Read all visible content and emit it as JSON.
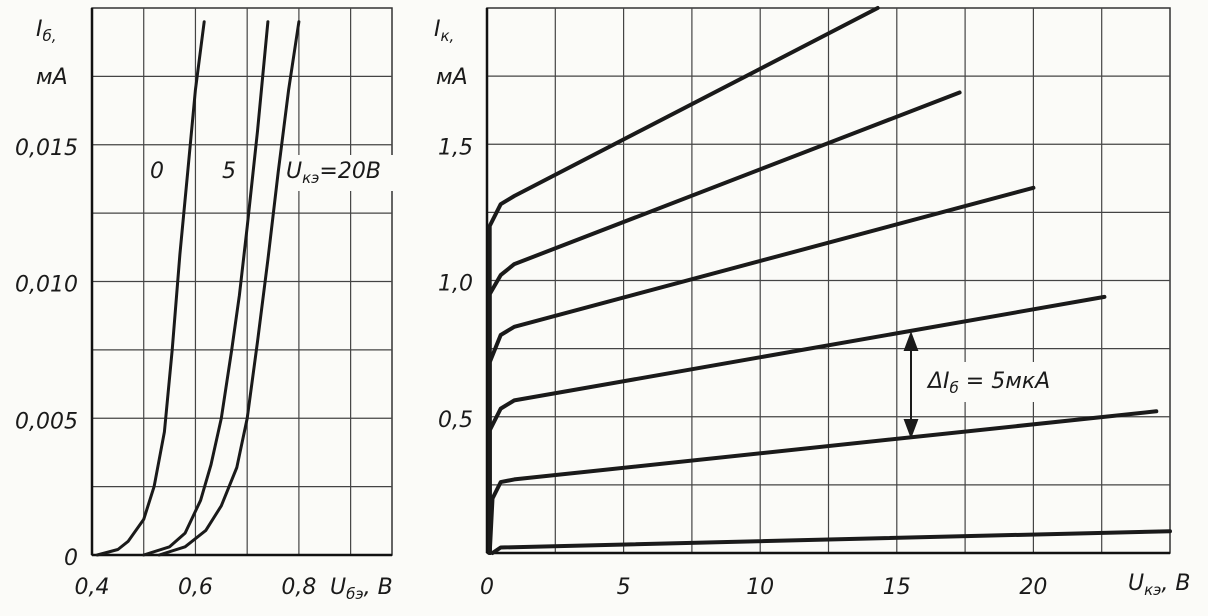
{
  "chart_data": [
    {
      "type": "line",
      "y_label": {
        "symbol": "I",
        "subscript": "б,",
        "unit": "мА"
      },
      "x_label": {
        "symbol": "U",
        "subscript": "бэ",
        "unit": ", В"
      },
      "xlim": [
        0.4,
        0.98
      ],
      "ylim": [
        0,
        0.02
      ],
      "xticks": [
        {
          "value": 0.4,
          "label": "0,4"
        },
        {
          "value": 0.6,
          "label": "0,6"
        },
        {
          "value": 0.8,
          "label": "0,8"
        }
      ],
      "yticks": [
        0,
        {
          "value": 0.005,
          "label": "0,005"
        },
        {
          "value": 0.01,
          "label": "0,010"
        },
        {
          "value": 0.015,
          "label": "0,015"
        }
      ],
      "xgrid": [
        0.5,
        0.7,
        0.9
      ],
      "ygrid": [
        0.0025,
        0.0075,
        0.0125,
        0.0175
      ],
      "grid": true,
      "series": [
        {
          "color": "#1a1a1a",
          "x": [
            0.41,
            0.45,
            0.47,
            0.5,
            0.52,
            0.54,
            0.555,
            0.57,
            0.585,
            0.6,
            0.617
          ],
          "values": [
            0,
            0.0002,
            0.0005,
            0.0013,
            0.0025,
            0.0045,
            0.0075,
            0.011,
            0.014,
            0.017,
            0.0195
          ]
        },
        {
          "color": "#1a1a1a",
          "x": [
            0.5,
            0.55,
            0.58,
            0.61,
            0.63,
            0.65,
            0.67,
            0.685,
            0.7,
            0.72,
            0.74
          ],
          "values": [
            0,
            0.0003,
            0.0008,
            0.002,
            0.0033,
            0.005,
            0.0075,
            0.0095,
            0.012,
            0.0155,
            0.0195
          ]
        },
        {
          "color": "#1a1a1a",
          "x": [
            0.53,
            0.58,
            0.62,
            0.65,
            0.68,
            0.7,
            0.72,
            0.74,
            0.76,
            0.78,
            0.8
          ],
          "values": [
            0,
            0.0003,
            0.0009,
            0.0018,
            0.0032,
            0.005,
            0.0078,
            0.0108,
            0.014,
            0.017,
            0.0195
          ]
        }
      ],
      "annotations": [
        {
          "text": "0"
        },
        {
          "text": "5"
        },
        {
          "symbol": "U",
          "subscript": "кэ",
          "text": "=20В"
        }
      ]
    },
    {
      "type": "line",
      "y_label": {
        "symbol": "I",
        "subscript": "к,",
        "unit": "мА"
      },
      "x_label": {
        "symbol": "U",
        "subscript": "кэ",
        "unit": ", В"
      },
      "xlim": [
        0,
        25
      ],
      "ylim": [
        0,
        2.0
      ],
      "xticks": [
        0,
        5,
        10,
        15,
        20
      ],
      "yticks": [
        {
          "value": 0.5,
          "label": "0,5"
        },
        {
          "value": 1,
          "label": "1,0"
        },
        {
          "value": 1.5,
          "label": "1,5"
        }
      ],
      "xgrid": [
        2.5,
        7.5,
        12.5,
        17.5,
        22.5
      ],
      "ygrid": [
        0.25,
        0.75,
        1.25,
        1.75
      ],
      "grid": true,
      "series": [
        {
          "color": "#1a1a1a",
          "x": [
            0.2,
            0.5,
            25
          ],
          "values": [
            0,
            0.02,
            0.08
          ]
        },
        {
          "color": "#1a1a1a",
          "x": [
            0.1,
            0.2,
            0.5,
            1,
            24.5
          ],
          "values": [
            0,
            0.2,
            0.26,
            0.27,
            0.52
          ]
        },
        {
          "color": "#1a1a1a",
          "x": [
            0.1,
            0.1,
            0.5,
            1,
            22.6
          ],
          "values": [
            0,
            0.45,
            0.53,
            0.56,
            0.94
          ]
        },
        {
          "color": "#1a1a1a",
          "x": [
            0.1,
            0.1,
            0.5,
            1,
            20
          ],
          "values": [
            0,
            0.7,
            0.8,
            0.83,
            1.34
          ]
        },
        {
          "color": "#1a1a1a",
          "x": [
            0.1,
            0.1,
            0.5,
            1,
            17.3
          ],
          "values": [
            0,
            0.95,
            1.02,
            1.06,
            1.69
          ]
        },
        {
          "color": "#1a1a1a",
          "x": [
            0.1,
            0.1,
            0.5,
            1,
            14.3
          ],
          "values": [
            0,
            1.2,
            1.28,
            1.31,
            2.0
          ]
        }
      ],
      "annotations": [
        {
          "symbol": "ΔI",
          "subscript": "б",
          "text": " = 5мкА"
        }
      ]
    }
  ]
}
